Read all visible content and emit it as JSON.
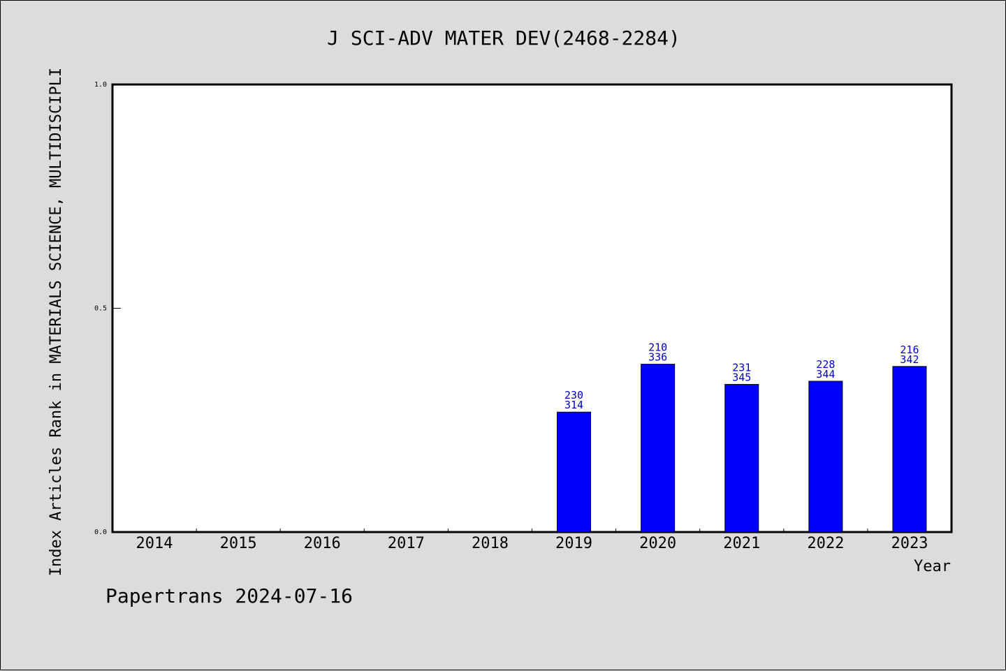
{
  "chart_data": {
    "type": "bar",
    "title": "J SCI-ADV MATER DEV(2468-2284)",
    "xlabel": "Year",
    "ylabel": "Index Articles Rank in MATERIALS SCIENCE, MULTIDISCIPLI",
    "categories": [
      "2014",
      "2015",
      "2016",
      "2017",
      "2018",
      "2019",
      "2020",
      "2021",
      "2022",
      "2023"
    ],
    "values": [
      null,
      null,
      null,
      null,
      null,
      0.268,
      0.375,
      0.33,
      0.337,
      0.37
    ],
    "bar_labels": [
      null,
      null,
      null,
      null,
      null,
      [
        "230",
        "314"
      ],
      [
        "210",
        "336"
      ],
      [
        "231",
        "345"
      ],
      [
        "228",
        "344"
      ],
      [
        "216",
        "342"
      ]
    ],
    "ylim": [
      0,
      1.0
    ],
    "yticks": [
      0.0,
      0.5,
      1.0
    ],
    "ytick_labels": [
      "0.0",
      "0.5",
      "1.0"
    ],
    "grid": false,
    "bar_color": "#0000ff",
    "label_color": "#0000cc"
  },
  "footer": "Papertrans 2024-07-16"
}
